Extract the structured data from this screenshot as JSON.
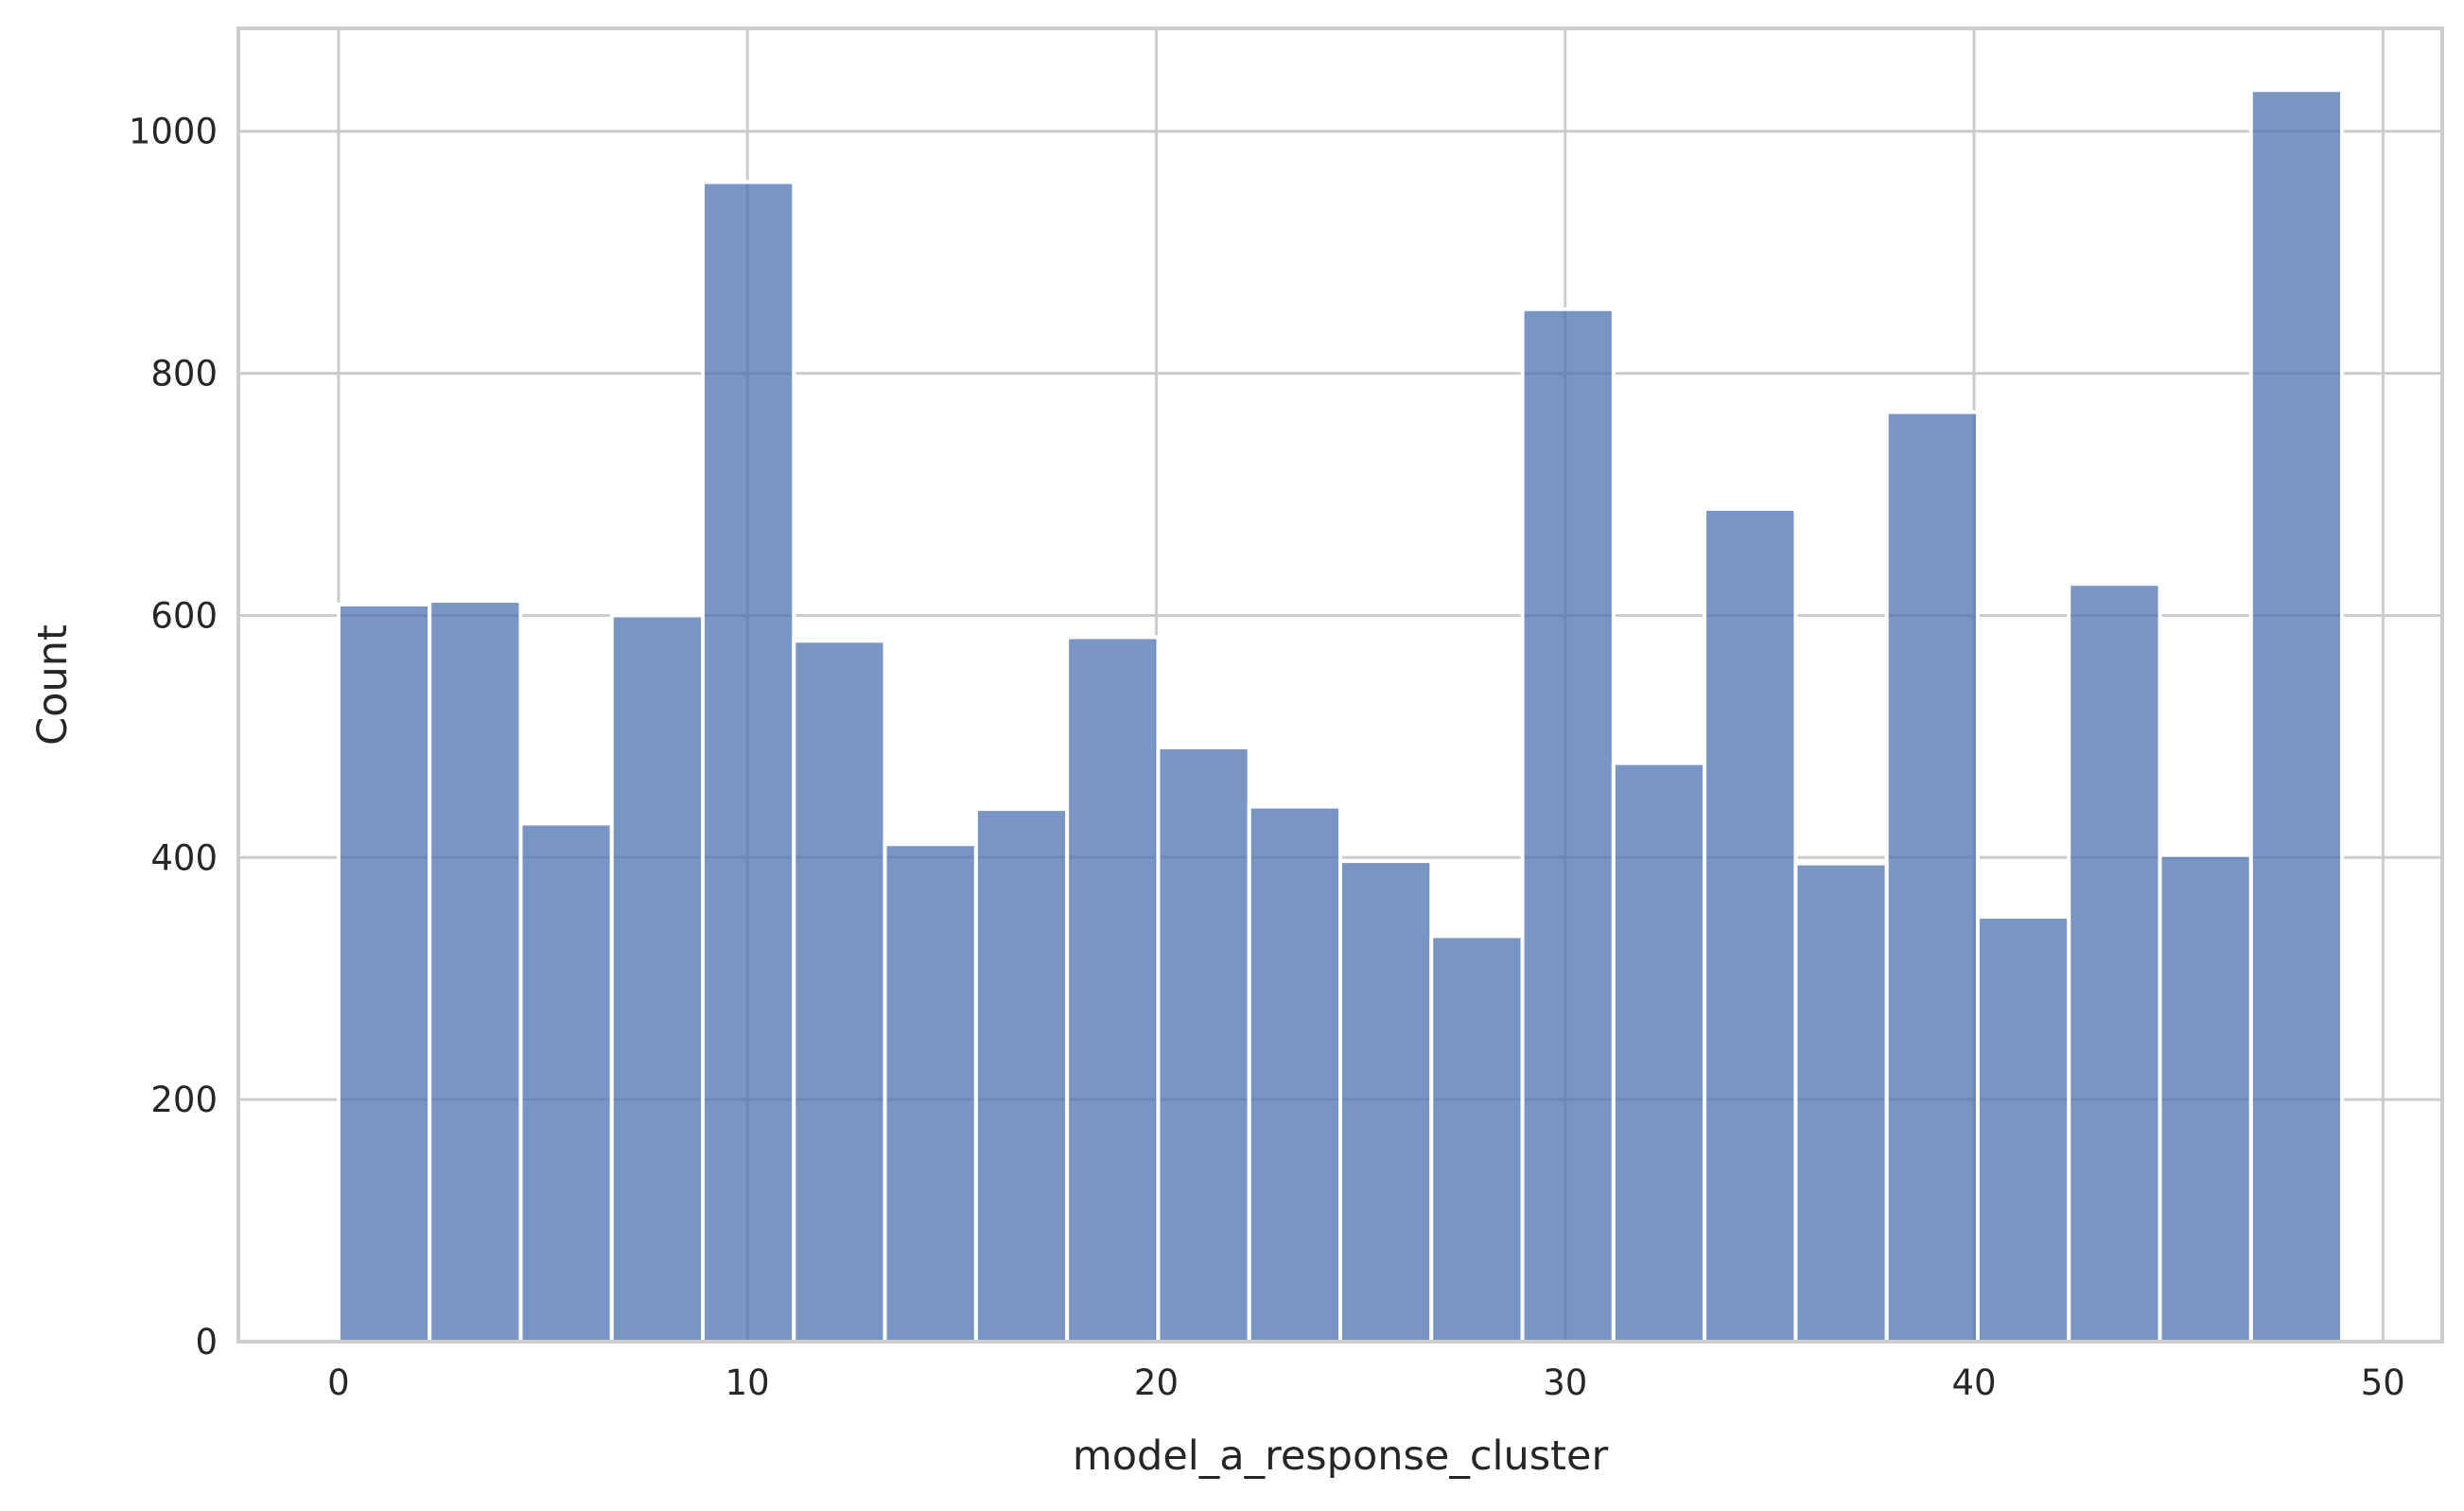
{
  "chart_data": {
    "type": "bar",
    "subtype": "histogram",
    "title": "",
    "xlabel": "model_a_response_cluster",
    "ylabel": "Count",
    "xlim": [
      -2.45,
      51.45
    ],
    "ylim": [
      0,
      1085
    ],
    "xticks": [
      0,
      10,
      20,
      30,
      40,
      50
    ],
    "yticks": [
      0,
      200,
      400,
      600,
      800,
      1000
    ],
    "grid": true,
    "legend": "none",
    "bar_color": "#4c72b0",
    "bin_width": 2.227,
    "bins": [
      {
        "x_start": 0.0,
        "count": 609
      },
      {
        "x_start": 2.227,
        "count": 612
      },
      {
        "x_start": 4.455,
        "count": 428
      },
      {
        "x_start": 6.682,
        "count": 600
      },
      {
        "x_start": 8.909,
        "count": 958
      },
      {
        "x_start": 11.136,
        "count": 579
      },
      {
        "x_start": 13.364,
        "count": 411
      },
      {
        "x_start": 15.591,
        "count": 440
      },
      {
        "x_start": 17.818,
        "count": 582
      },
      {
        "x_start": 20.045,
        "count": 491
      },
      {
        "x_start": 22.273,
        "count": 442
      },
      {
        "x_start": 24.5,
        "count": 397
      },
      {
        "x_start": 26.727,
        "count": 335
      },
      {
        "x_start": 28.955,
        "count": 853
      },
      {
        "x_start": 31.182,
        "count": 478
      },
      {
        "x_start": 33.409,
        "count": 688
      },
      {
        "x_start": 35.636,
        "count": 395
      },
      {
        "x_start": 37.864,
        "count": 768
      },
      {
        "x_start": 40.091,
        "count": 351
      },
      {
        "x_start": 42.318,
        "count": 626
      },
      {
        "x_start": 44.545,
        "count": 402
      },
      {
        "x_start": 46.773,
        "count": 1034
      }
    ]
  }
}
